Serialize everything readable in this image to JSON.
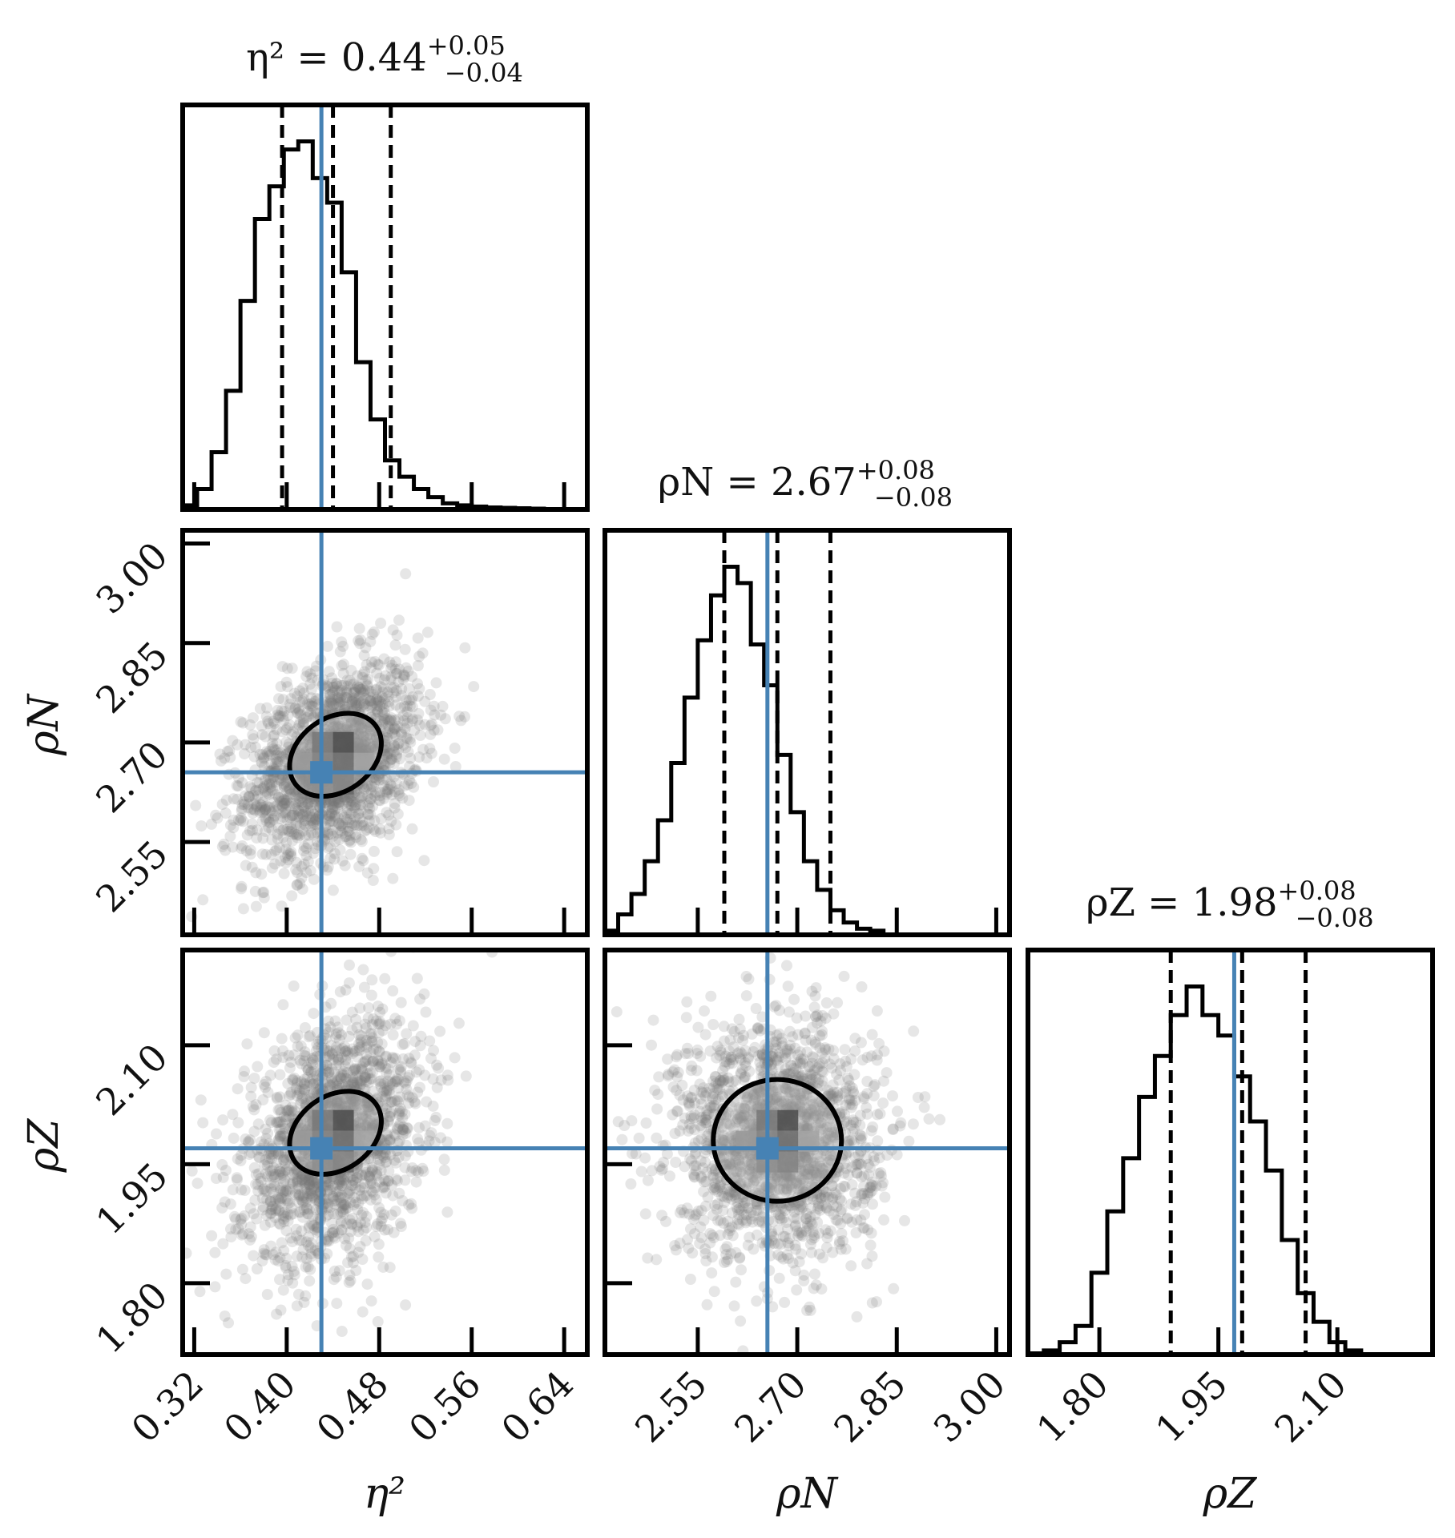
{
  "chart_data": {
    "type": "corner",
    "colors": {
      "truth": "#4682b4",
      "hist": "#000000",
      "points": "#777777",
      "frame": "#000000"
    },
    "parameters": [
      {
        "key": "eta2",
        "label": "η²",
        "title": "η² = 0.44",
        "median": 0.44,
        "err_plus": "+0.05",
        "err_minus": "−0.04",
        "quantiles": [
          0.396,
          0.44,
          0.49
        ],
        "truth": 0.43,
        "range": [
          0.31,
          0.66
        ],
        "ticks": [
          0.32,
          0.4,
          0.48,
          0.56,
          0.64
        ],
        "tick_labels": [
          "0.32",
          "0.40",
          "0.48",
          "0.56",
          "0.64"
        ]
      },
      {
        "key": "rhoN",
        "label": "ρN",
        "title": "ρN = 2.67",
        "median": 2.67,
        "err_plus": "+0.08",
        "err_minus": "−0.08",
        "quantiles": [
          2.59,
          2.67,
          2.75
        ],
        "truth": 2.655,
        "range": [
          2.41,
          3.02
        ],
        "ticks": [
          2.55,
          2.7,
          2.85,
          3.0
        ],
        "tick_labels": [
          "2.55",
          "2.70",
          "2.85",
          "3.00"
        ]
      },
      {
        "key": "rhoZ",
        "label": "ρZ",
        "title": "ρZ = 1.98",
        "median": 1.98,
        "err_plus": "+0.08",
        "err_minus": "−0.08",
        "quantiles": [
          1.89,
          1.98,
          2.06
        ],
        "truth": 1.97,
        "range": [
          1.71,
          2.22
        ],
        "ticks": [
          1.8,
          1.95,
          2.1
        ],
        "tick_labels": [
          "1.80",
          "1.95",
          "2.10"
        ]
      }
    ],
    "histograms": [
      {
        "param": "eta2",
        "edges_start": 0.31,
        "bin_width": 0.0125,
        "counts": [
          1,
          5,
          14,
          29,
          51,
          71,
          79,
          88,
          90,
          81,
          75,
          58,
          36,
          22,
          12,
          8,
          5,
          3,
          1.5,
          1,
          0.7,
          0.5,
          0.4,
          0.3,
          0.2,
          0.1,
          0,
          0
        ]
      },
      {
        "param": "rhoN",
        "edges_start": 2.41,
        "bin_width": 0.02,
        "counts": [
          1,
          5,
          10,
          18,
          28,
          42,
          58,
          72,
          83,
          90,
          86,
          71,
          61,
          44,
          30,
          18,
          11,
          6,
          3,
          1.5,
          1,
          0
        ]
      },
      {
        "param": "rhoZ",
        "edges_start": 1.71,
        "bin_width": 0.02,
        "counts": [
          0.3,
          1,
          3,
          7,
          20,
          35,
          48,
          63,
          73,
          83,
          90,
          83,
          78,
          68,
          57,
          45,
          28,
          15,
          8,
          3,
          1
        ]
      }
    ],
    "scatter_pairs": [
      {
        "x": "eta2",
        "y": "rhoN",
        "correlation": 0.35,
        "n_points": 1800
      },
      {
        "x": "eta2",
        "y": "rhoZ",
        "correlation": 0.3,
        "n_points": 1800
      },
      {
        "x": "rhoN",
        "y": "rhoZ",
        "correlation": 0.0,
        "n_points": 1800
      }
    ]
  }
}
